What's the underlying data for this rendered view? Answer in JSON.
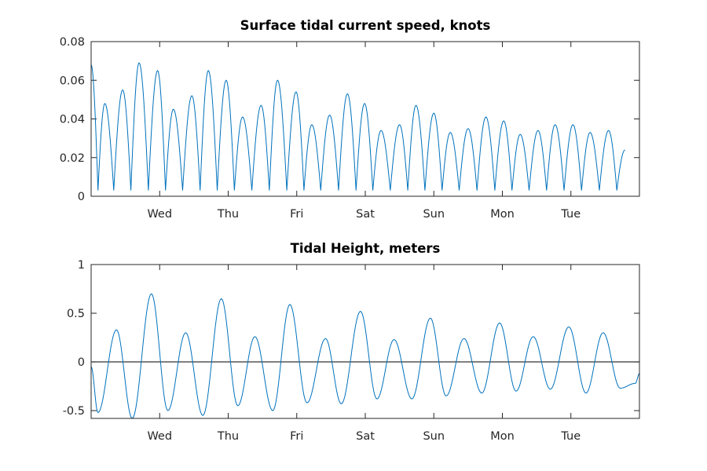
{
  "chart_data": [
    {
      "type": "line",
      "title": "Surface tidal current speed, knots",
      "xlabel": "",
      "ylabel": "",
      "x_tick_labels": [
        "Wed",
        "Thu",
        "Fri",
        "Sat",
        "Sun",
        "Mon",
        "Tue"
      ],
      "x_tick_positions_days": [
        1,
        2,
        3,
        4,
        5,
        6,
        7
      ],
      "xlim_days": [
        0,
        8
      ],
      "ylim": [
        0,
        0.08
      ],
      "y_ticks": [
        0,
        0.02,
        0.04,
        0.06,
        0.08
      ],
      "y_tick_labels": [
        "0",
        "0.02",
        "0.04",
        "0.06",
        "0.08"
      ],
      "grid": false,
      "line_color": "#0072bd",
      "series": [
        {
          "x_days": [
            0.0,
            0.2,
            0.46,
            0.7,
            0.97,
            1.2,
            1.47,
            1.71,
            1.97,
            2.21,
            2.48,
            2.72,
            2.99,
            3.22,
            3.48,
            3.74,
            3.99,
            4.23,
            4.5,
            4.74,
            5.0,
            5.24,
            5.5,
            5.76,
            6.02,
            6.26,
            6.52,
            6.77,
            7.03,
            7.28,
            7.55,
            7.79
          ],
          "values": [
            0.068,
            0.048,
            0.055,
            0.069,
            0.065,
            0.045,
            0.052,
            0.065,
            0.06,
            0.041,
            0.047,
            0.06,
            0.054,
            0.037,
            0.042,
            0.053,
            0.048,
            0.034,
            0.037,
            0.047,
            0.043,
            0.033,
            0.035,
            0.041,
            0.039,
            0.032,
            0.034,
            0.037,
            0.037,
            0.033,
            0.034,
            0.024
          ]
        }
      ]
    },
    {
      "type": "line",
      "title": "Tidal Height, meters",
      "xlabel": "",
      "ylabel": "",
      "x_tick_labels": [
        "Wed",
        "Thu",
        "Fri",
        "Sat",
        "Sun",
        "Mon",
        "Tue"
      ],
      "x_tick_positions_days": [
        1,
        2,
        3,
        4,
        5,
        6,
        7
      ],
      "xlim_days": [
        0,
        8
      ],
      "ylim": [
        -0.58,
        1
      ],
      "y_ticks": [
        -0.5,
        0,
        0.5,
        1
      ],
      "y_tick_labels": [
        "-0.5",
        "0",
        "0.5",
        "1"
      ],
      "reference_line_y": 0,
      "grid": false,
      "line_color": "#0072bd",
      "series": [
        {
          "x_days": [
            0.0,
            0.1,
            0.37,
            0.6,
            0.88,
            1.12,
            1.38,
            1.63,
            1.9,
            2.14,
            2.39,
            2.65,
            2.9,
            3.15,
            3.42,
            3.65,
            3.93,
            4.17,
            4.42,
            4.68,
            4.95,
            5.18,
            5.44,
            5.7,
            5.96,
            6.2,
            6.45,
            6.7,
            6.97,
            7.22,
            7.47,
            7.72,
            7.94,
            8.0
          ],
          "values": [
            -0.05,
            -0.52,
            0.33,
            -0.58,
            0.7,
            -0.5,
            0.3,
            -0.55,
            0.65,
            -0.45,
            0.26,
            -0.5,
            0.59,
            -0.42,
            0.24,
            -0.43,
            0.52,
            -0.38,
            0.23,
            -0.38,
            0.45,
            -0.35,
            0.24,
            -0.32,
            0.4,
            -0.3,
            0.26,
            -0.28,
            0.36,
            -0.32,
            0.3,
            -0.27,
            -0.22,
            -0.12
          ]
        }
      ]
    }
  ]
}
